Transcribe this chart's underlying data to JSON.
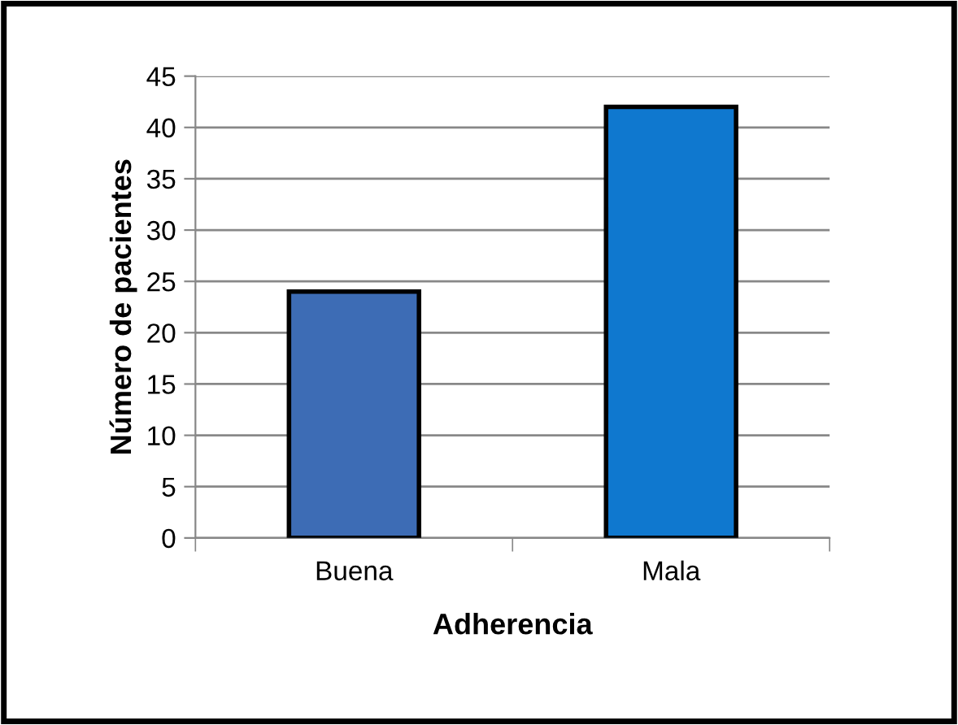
{
  "chart_data": {
    "type": "bar",
    "xlabel": "Adherencia",
    "ylabel": "Número de pacientes",
    "categories": [
      "Buena",
      "Mala"
    ],
    "values": [
      24,
      42
    ],
    "colors": [
      "#3d6cb5",
      "#0f78cf"
    ],
    "ylim": [
      0,
      45
    ],
    "yticks": [
      0,
      5,
      10,
      15,
      20,
      25,
      30,
      35,
      40,
      45
    ],
    "grid": "y",
    "legend": false
  }
}
